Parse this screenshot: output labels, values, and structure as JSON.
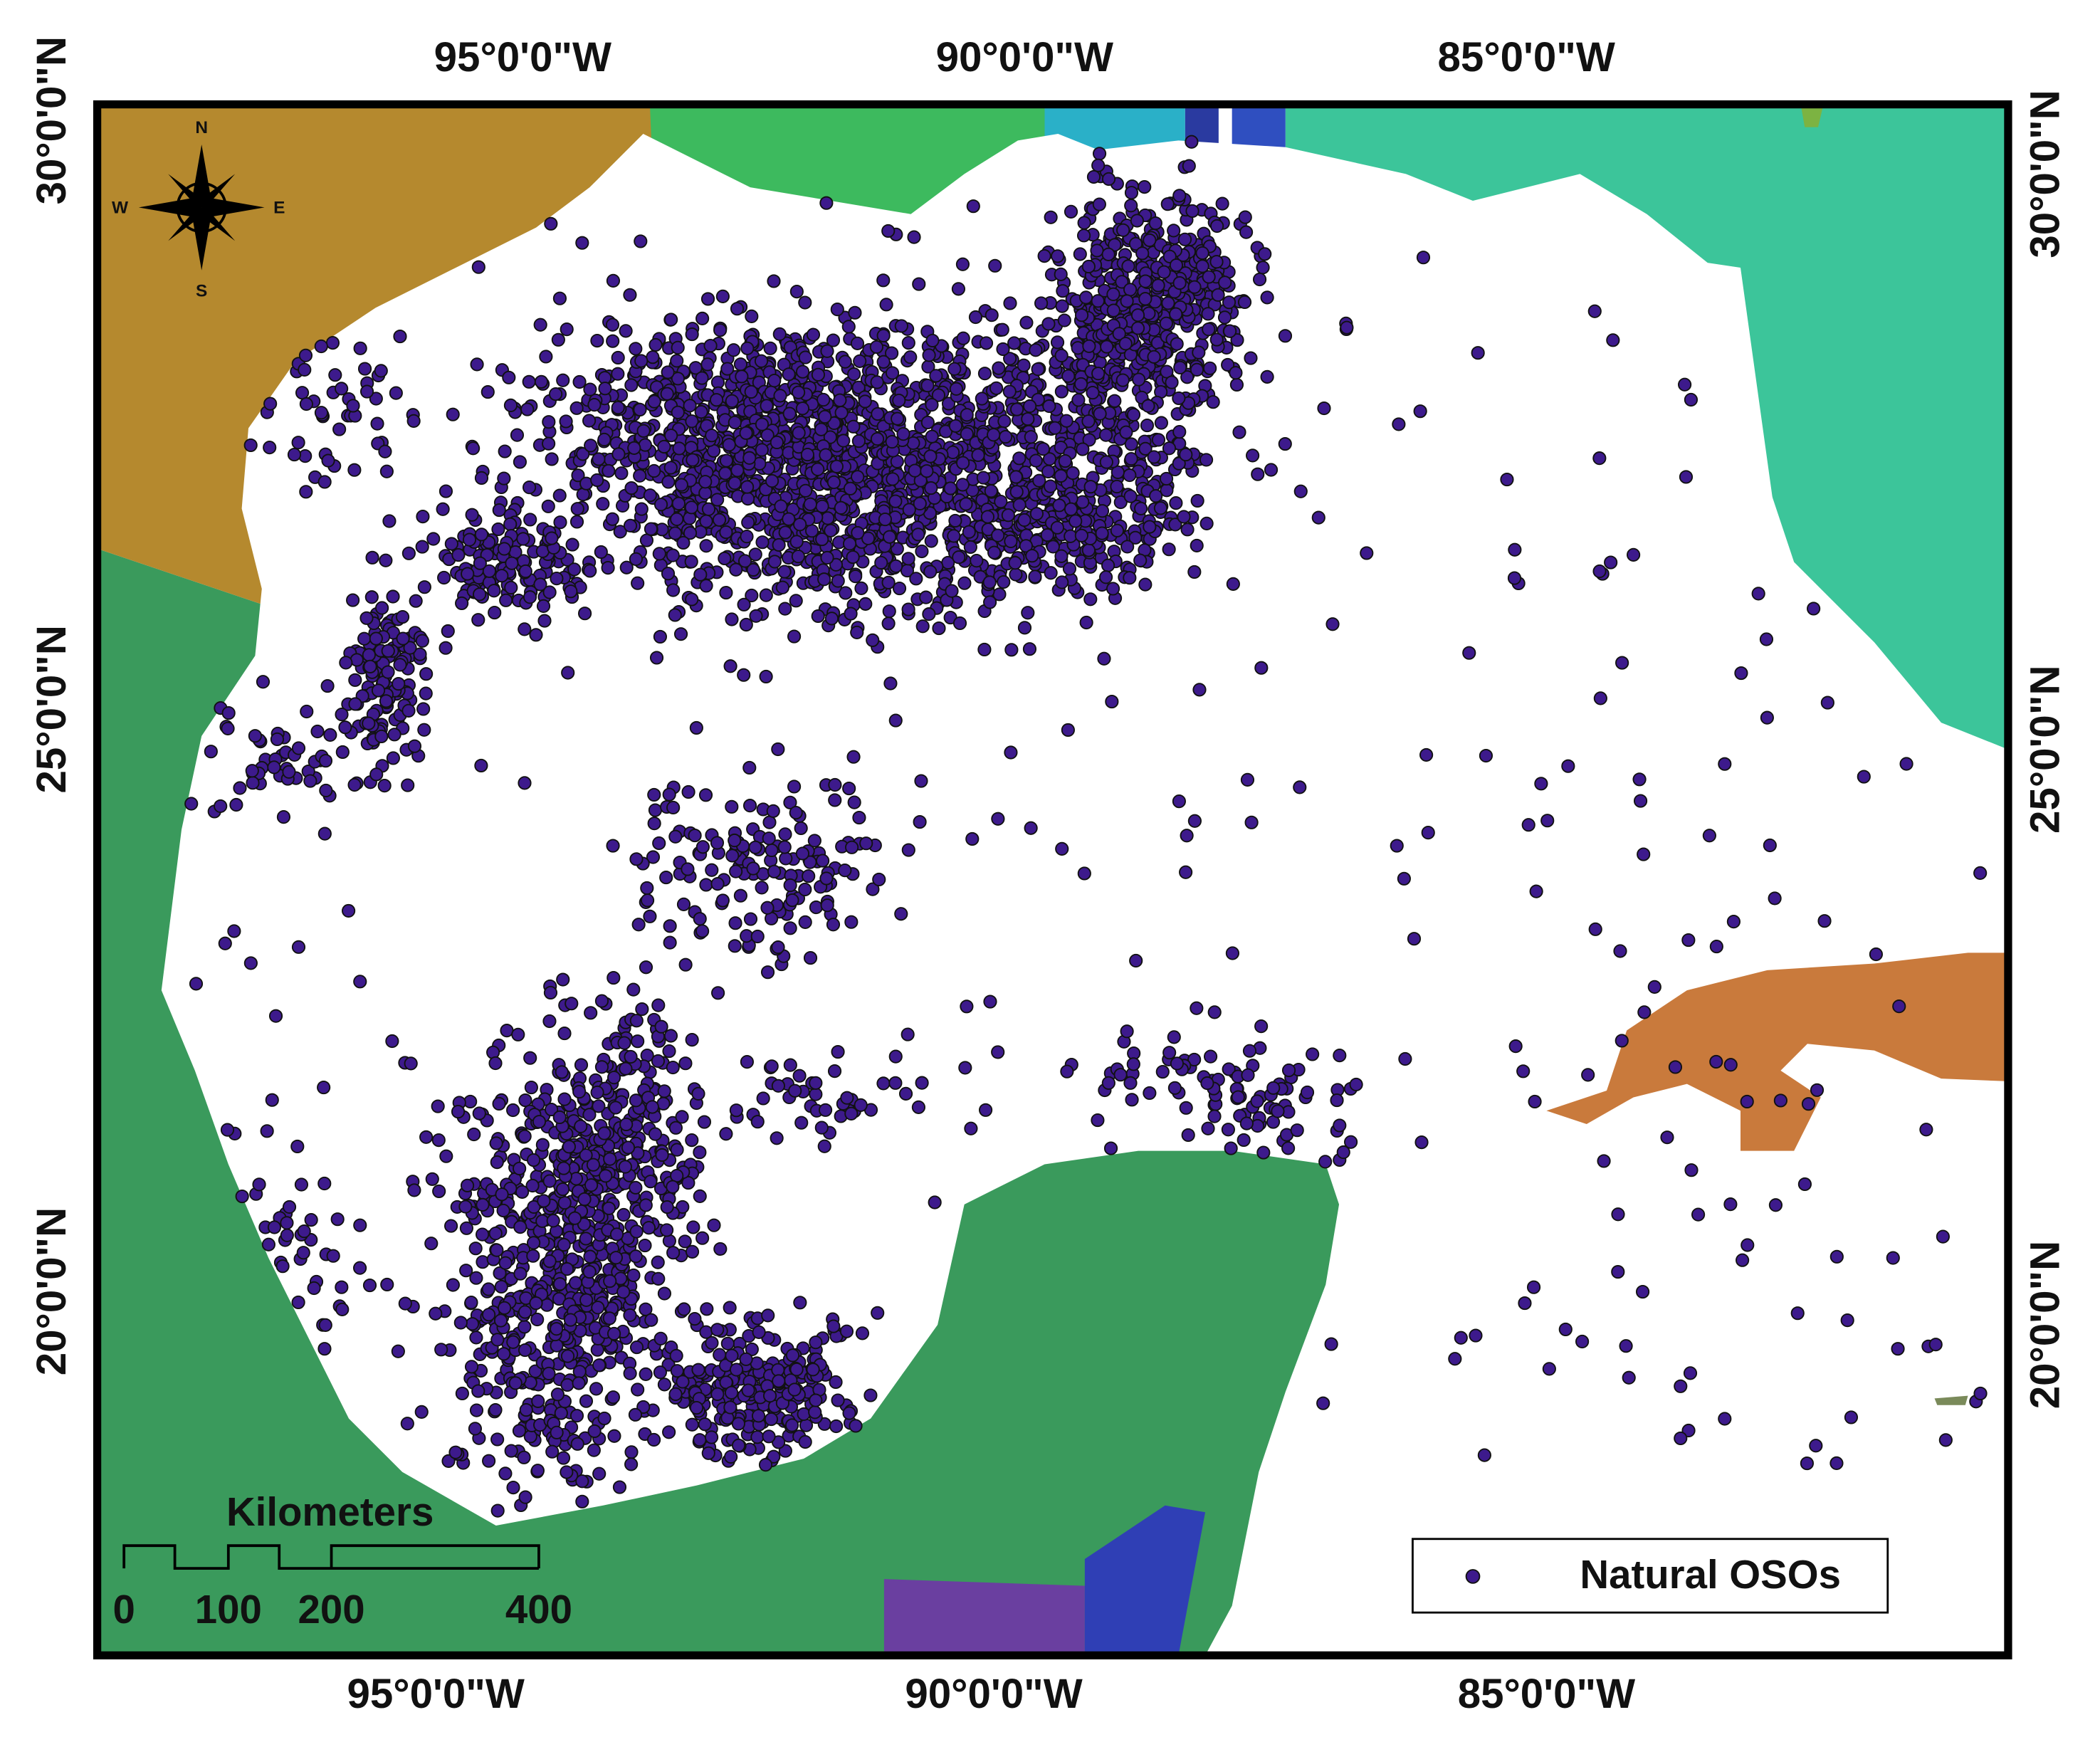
{
  "map": {
    "graticule": {
      "top": [
        "95°0'0\"W",
        "90°0'0\"W",
        "85°0'0\"W"
      ],
      "bottom": [
        "95°0'0\"W",
        "90°0'0\"W",
        "85°0'0\"W"
      ],
      "left": [
        "30°0'0\"N",
        "25°0'0\"N",
        "20°0'0\"N"
      ],
      "right": [
        "30°0'0\"N",
        "25°0'0\"N",
        "20°0'0\"N"
      ]
    },
    "compass": {
      "n": "N",
      "s": "S",
      "e": "E",
      "w": "W"
    },
    "scale_bar": {
      "title": "Kilometers",
      "labels": [
        0,
        100,
        200,
        400
      ]
    },
    "legend": {
      "label": "Natural OSOs"
    }
  }
}
